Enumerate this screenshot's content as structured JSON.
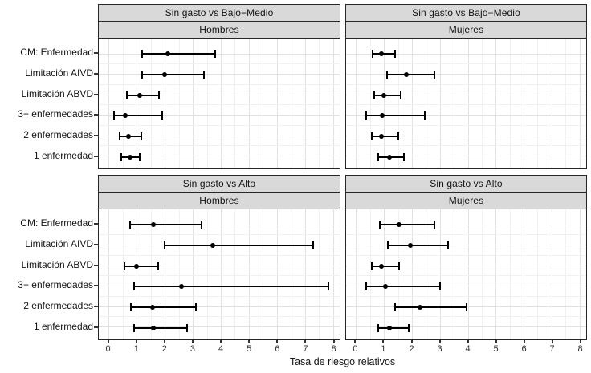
{
  "figure": {
    "kind": "faceted forest plot (relative risk rates with 95% CI)",
    "background": "#ffffff",
    "colors": {
      "strip_fill": "#d9d9d9",
      "strip_border": "#262626",
      "panel_border": "#262626",
      "grid_major": "#e2e2e2",
      "grid_minor": "#f1f1f1",
      "data": "#000000",
      "axis_text": "#303030"
    }
  },
  "chart_data": {
    "type": "errorbar-forest",
    "xlabel": "Tasa de riesgo relativos",
    "xlim": [
      0,
      8
    ],
    "x_ticks": [
      "0",
      "1",
      "2",
      "3",
      "4",
      "5",
      "6",
      "7",
      "8"
    ],
    "grid": "on",
    "categories_top_to_bottom": [
      "CM: Enfermedad",
      "Limitación AIVD",
      "Limitación ABVD",
      "3+ enfermedades",
      "2 enfermedades",
      "1 enfermedad"
    ],
    "facet_layout": {
      "rows": [
        "Sin gasto vs Bajo−Medio",
        "Sin gasto vs Alto"
      ],
      "cols": [
        "Hombres",
        "Mujeres"
      ]
    },
    "facets": [
      {
        "facet_row": "Sin gasto vs Bajo−Medio",
        "facet_col": "Hombres",
        "points": [
          {
            "category": "CM: Enfermedad",
            "estimate": 2.1,
            "ci_low": 1.2,
            "ci_high": 3.8
          },
          {
            "category": "Limitación AIVD",
            "estimate": 2.0,
            "ci_low": 1.2,
            "ci_high": 3.4
          },
          {
            "category": "Limitación ABVD",
            "estimate": 1.1,
            "ci_low": 0.65,
            "ci_high": 1.8
          },
          {
            "category": "3+ enfermedades",
            "estimate": 0.6,
            "ci_low": 0.2,
            "ci_high": 1.9
          },
          {
            "category": "2 enfermedades",
            "estimate": 0.7,
            "ci_low": 0.4,
            "ci_high": 1.15
          },
          {
            "category": "1 enfermedad",
            "estimate": 0.75,
            "ci_low": 0.45,
            "ci_high": 1.1
          }
        ]
      },
      {
        "facet_row": "Sin gasto vs Bajo−Medio",
        "facet_col": "Mujeres",
        "points": [
          {
            "category": "CM: Enfermedad",
            "estimate": 0.9,
            "ci_low": 0.6,
            "ci_high": 1.4
          },
          {
            "category": "Limitación AIVD",
            "estimate": 1.8,
            "ci_low": 1.1,
            "ci_high": 2.8
          },
          {
            "category": "Limitación ABVD",
            "estimate": 1.0,
            "ci_low": 0.65,
            "ci_high": 1.6
          },
          {
            "category": "3+ enfermedades",
            "estimate": 0.95,
            "ci_low": 0.35,
            "ci_high": 2.45
          },
          {
            "category": "2 enfermedades",
            "estimate": 0.9,
            "ci_low": 0.55,
            "ci_high": 1.5
          },
          {
            "category": "1 enfermedad",
            "estimate": 1.2,
            "ci_low": 0.8,
            "ci_high": 1.7
          }
        ]
      },
      {
        "facet_row": "Sin gasto vs Alto",
        "facet_col": "Hombres",
        "points": [
          {
            "category": "CM: Enfermedad",
            "estimate": 1.6,
            "ci_low": 0.75,
            "ci_high": 3.3
          },
          {
            "category": "Limitación AIVD",
            "estimate": 3.7,
            "ci_low": 2.0,
            "ci_high": 7.3
          },
          {
            "category": "Limitación ABVD",
            "estimate": 1.0,
            "ci_low": 0.55,
            "ci_high": 1.75
          },
          {
            "category": "3+ enfermedades",
            "estimate": 2.6,
            "ci_low": 0.9,
            "ci_high": 7.85
          },
          {
            "category": "2 enfermedades",
            "estimate": 1.55,
            "ci_low": 0.8,
            "ci_high": 3.1
          },
          {
            "category": "1 enfermedad",
            "estimate": 1.6,
            "ci_low": 0.9,
            "ci_high": 2.8
          }
        ]
      },
      {
        "facet_row": "Sin gasto vs Alto",
        "facet_col": "Mujeres",
        "points": [
          {
            "category": "CM: Enfermedad",
            "estimate": 1.55,
            "ci_low": 0.85,
            "ci_high": 2.8
          },
          {
            "category": "Limitación AIVD",
            "estimate": 1.95,
            "ci_low": 1.15,
            "ci_high": 3.3
          },
          {
            "category": "Limitación ABVD",
            "estimate": 0.9,
            "ci_low": 0.55,
            "ci_high": 1.55
          },
          {
            "category": "3+ enfermedades",
            "estimate": 1.05,
            "ci_low": 0.35,
            "ci_high": 3.0
          },
          {
            "category": "2 enfermedades",
            "estimate": 2.3,
            "ci_low": 1.4,
            "ci_high": 3.95
          },
          {
            "category": "1 enfermedad",
            "estimate": 1.2,
            "ci_low": 0.8,
            "ci_high": 1.9
          }
        ]
      }
    ]
  }
}
